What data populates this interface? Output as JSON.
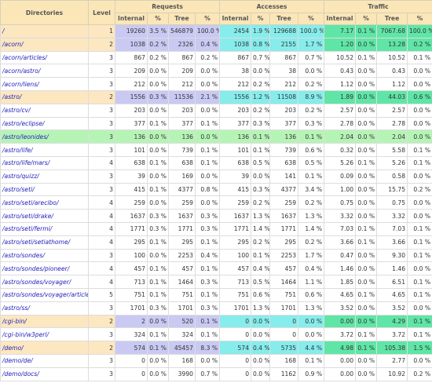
{
  "table": {
    "header": {
      "directories": "Directories",
      "level": "Level",
      "groups": [
        "Requests",
        "Accesses",
        "Traffic"
      ],
      "sub": [
        "Internal",
        "%",
        "Tree",
        "%",
        "Internal",
        "%",
        "Tree",
        "%",
        "Internal",
        "%",
        "Tree",
        "%"
      ]
    },
    "rows": [
      [
        "/",
        "1",
        "19260",
        "3.5 %",
        "546879",
        "100.0 %",
        "2454",
        "1.9 %",
        "129688",
        "100.0 %",
        "7.17",
        "0.1 %",
        "7067.68",
        "100.0 %"
      ],
      [
        "/acorn/",
        "2",
        "1038",
        "0.2 %",
        "2326",
        "0.4 %",
        "1038",
        "0.8 %",
        "2155",
        "1.7 %",
        "1.20",
        "0.0 %",
        "13.28",
        "0.2 %"
      ],
      [
        "/acorn/articles/",
        "3",
        "867",
        "0.2 %",
        "867",
        "0.2 %",
        "867",
        "0.7 %",
        "867",
        "0.7 %",
        "10.52",
        "0.1 %",
        "10.52",
        "0.1 %"
      ],
      [
        "/acorn/astro/",
        "3",
        "209",
        "0.0 %",
        "209",
        "0.0 %",
        "38",
        "0.0 %",
        "38",
        "0.0 %",
        "0.43",
        "0.0 %",
        "0.43",
        "0.0 %"
      ],
      [
        "/acorn/liens/",
        "3",
        "212",
        "0.0 %",
        "212",
        "0.0 %",
        "212",
        "0.2 %",
        "212",
        "0.2 %",
        "1.12",
        "0.0 %",
        "1.12",
        "0.0 %"
      ],
      [
        "/astro/",
        "2",
        "1556",
        "0.3 %",
        "11536",
        "2.1 %",
        "1556",
        "1.2 %",
        "11508",
        "8.9 %",
        "1.89",
        "0.0 %",
        "44.03",
        "0.6 %"
      ],
      [
        "/astro/cv/",
        "3",
        "203",
        "0.0 %",
        "203",
        "0.0 %",
        "203",
        "0.2 %",
        "203",
        "0.2 %",
        "2.57",
        "0.0 %",
        "2.57",
        "0.0 %"
      ],
      [
        "/astro/eclipse/",
        "3",
        "377",
        "0.1 %",
        "377",
        "0.1 %",
        "377",
        "0.3 %",
        "377",
        "0.3 %",
        "2.78",
        "0.0 %",
        "2.78",
        "0.0 %"
      ],
      [
        "/astro/leonides/",
        "3",
        "136",
        "0.0 %",
        "136",
        "0.0 %",
        "136",
        "0.1 %",
        "136",
        "0.1 %",
        "2.04",
        "0.0 %",
        "2.04",
        "0.0 %"
      ],
      [
        "/astro/life/",
        "3",
        "101",
        "0.0 %",
        "739",
        "0.1 %",
        "101",
        "0.1 %",
        "739",
        "0.6 %",
        "0.32",
        "0.0 %",
        "5.58",
        "0.1 %"
      ],
      [
        "/astro/life/mars/",
        "4",
        "638",
        "0.1 %",
        "638",
        "0.1 %",
        "638",
        "0.5 %",
        "638",
        "0.5 %",
        "5.26",
        "0.1 %",
        "5.26",
        "0.1 %"
      ],
      [
        "/astro/quizz/",
        "3",
        "39",
        "0.0 %",
        "169",
        "0.0 %",
        "39",
        "0.0 %",
        "141",
        "0.1 %",
        "0.09",
        "0.0 %",
        "0.58",
        "0.0 %"
      ],
      [
        "/astro/seti/",
        "3",
        "415",
        "0.1 %",
        "4377",
        "0.8 %",
        "415",
        "0.3 %",
        "4377",
        "3.4 %",
        "1.00",
        "0.0 %",
        "15.75",
        "0.2 %"
      ],
      [
        "/astro/seti/arecibo/",
        "4",
        "259",
        "0.0 %",
        "259",
        "0.0 %",
        "259",
        "0.2 %",
        "259",
        "0.2 %",
        "0.75",
        "0.0 %",
        "0.75",
        "0.0 %"
      ],
      [
        "/astro/seti/drake/",
        "4",
        "1637",
        "0.3 %",
        "1637",
        "0.3 %",
        "1637",
        "1.3 %",
        "1637",
        "1.3 %",
        "3.32",
        "0.0 %",
        "3.32",
        "0.0 %"
      ],
      [
        "/astro/seti/fermi/",
        "4",
        "1771",
        "0.3 %",
        "1771",
        "0.3 %",
        "1771",
        "1.4 %",
        "1771",
        "1.4 %",
        "7.03",
        "0.1 %",
        "7.03",
        "0.1 %"
      ],
      [
        "/astro/seti/setiathome/",
        "4",
        "295",
        "0.1 %",
        "295",
        "0.1 %",
        "295",
        "0.2 %",
        "295",
        "0.2 %",
        "3.66",
        "0.1 %",
        "3.66",
        "0.1 %"
      ],
      [
        "/astro/sondes/",
        "3",
        "100",
        "0.0 %",
        "2253",
        "0.4 %",
        "100",
        "0.1 %",
        "2253",
        "1.7 %",
        "0.47",
        "0.0 %",
        "9.30",
        "0.1 %"
      ],
      [
        "/astro/sondes/pioneer/",
        "4",
        "457",
        "0.1 %",
        "457",
        "0.1 %",
        "457",
        "0.4 %",
        "457",
        "0.4 %",
        "1.46",
        "0.0 %",
        "1.46",
        "0.0 %"
      ],
      [
        "/astro/sondes/voyager/",
        "4",
        "713",
        "0.1 %",
        "1464",
        "0.3 %",
        "713",
        "0.5 %",
        "1464",
        "1.1 %",
        "1.85",
        "0.0 %",
        "6.51",
        "0.1 %"
      ],
      [
        "/astro/sondes/voyager/article/",
        "5",
        "751",
        "0.1 %",
        "751",
        "0.1 %",
        "751",
        "0.6 %",
        "751",
        "0.6 %",
        "4.65",
        "0.1 %",
        "4.65",
        "0.1 %"
      ],
      [
        "/astro/ss/",
        "3",
        "1701",
        "0.3 %",
        "1701",
        "0.3 %",
        "1701",
        "1.3 %",
        "1701",
        "1.3 %",
        "3.52",
        "0.0 %",
        "3.52",
        "0.0 %"
      ],
      [
        "/cgi-bin/",
        "2",
        "2",
        "0.0 %",
        "520",
        "0.1 %",
        "0",
        "0.0 %",
        "0",
        "0.0 %",
        "0.00",
        "0.0 %",
        "4.29",
        "0.1 %"
      ],
      [
        "/cgi-bin/w3perl/",
        "3",
        "324",
        "0.1 %",
        "324",
        "0.1 %",
        "0",
        "0.0 %",
        "0",
        "0.0 %",
        "3.72",
        "0.1 %",
        "3.72",
        "0.1 %"
      ],
      [
        "/demo/",
        "2",
        "574",
        "0.1 %",
        "45457",
        "8.3 %",
        "574",
        "0.4 %",
        "5735",
        "4.4 %",
        "4.98",
        "0.1 %",
        "105.38",
        "1.5 %"
      ],
      [
        "/demo/de/",
        "3",
        "0",
        "0.0 %",
        "168",
        "0.0 %",
        "0",
        "0.0 %",
        "168",
        "0.1 %",
        "0.00",
        "0.0 %",
        "2.77",
        "0.0 %"
      ],
      [
        "/demo/docs/",
        "3",
        "0",
        "0.0 %",
        "3990",
        "0.7 %",
        "0",
        "0.0 %",
        "1162",
        "0.9 %",
        "0.00",
        "0.0 %",
        "10.92",
        "0.2 %"
      ]
    ]
  }
}
